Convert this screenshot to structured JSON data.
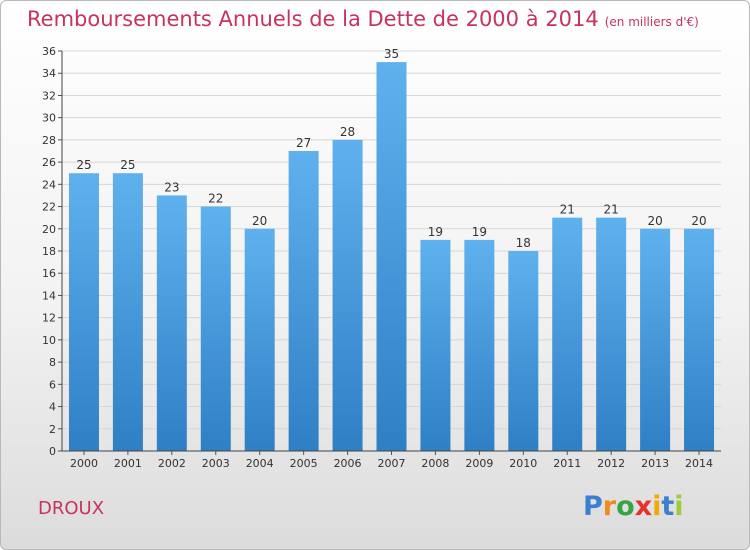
{
  "chart_data": {
    "type": "bar",
    "title": "Remboursements Annuels de la Dette de 2000 à 2014",
    "subtitle": "(en milliers d'€)",
    "categories": [
      "2000",
      "2001",
      "2002",
      "2003",
      "2004",
      "2005",
      "2006",
      "2007",
      "2008",
      "2009",
      "2010",
      "2011",
      "2012",
      "2013",
      "2014"
    ],
    "values": [
      25,
      25,
      23,
      22,
      20,
      27,
      28,
      35,
      19,
      19,
      18,
      21,
      21,
      20,
      20
    ],
    "ylim": [
      0,
      36
    ],
    "yticks": [
      0,
      2,
      4,
      6,
      8,
      10,
      12,
      14,
      16,
      18,
      20,
      22,
      24,
      26,
      28,
      30,
      32,
      34,
      36
    ],
    "grid": true,
    "bar_color": "#4a9fe0"
  },
  "footer": {
    "commune": "DROUX",
    "logo_letters": [
      "P",
      "r",
      "o",
      "x",
      "i",
      "t",
      "i"
    ],
    "logo_colors": [
      "#3b7fd0",
      "#f08a1c",
      "#3aa345",
      "#e5322d",
      "#f2a900",
      "#3b7fd0",
      "#9fcb3a"
    ]
  }
}
